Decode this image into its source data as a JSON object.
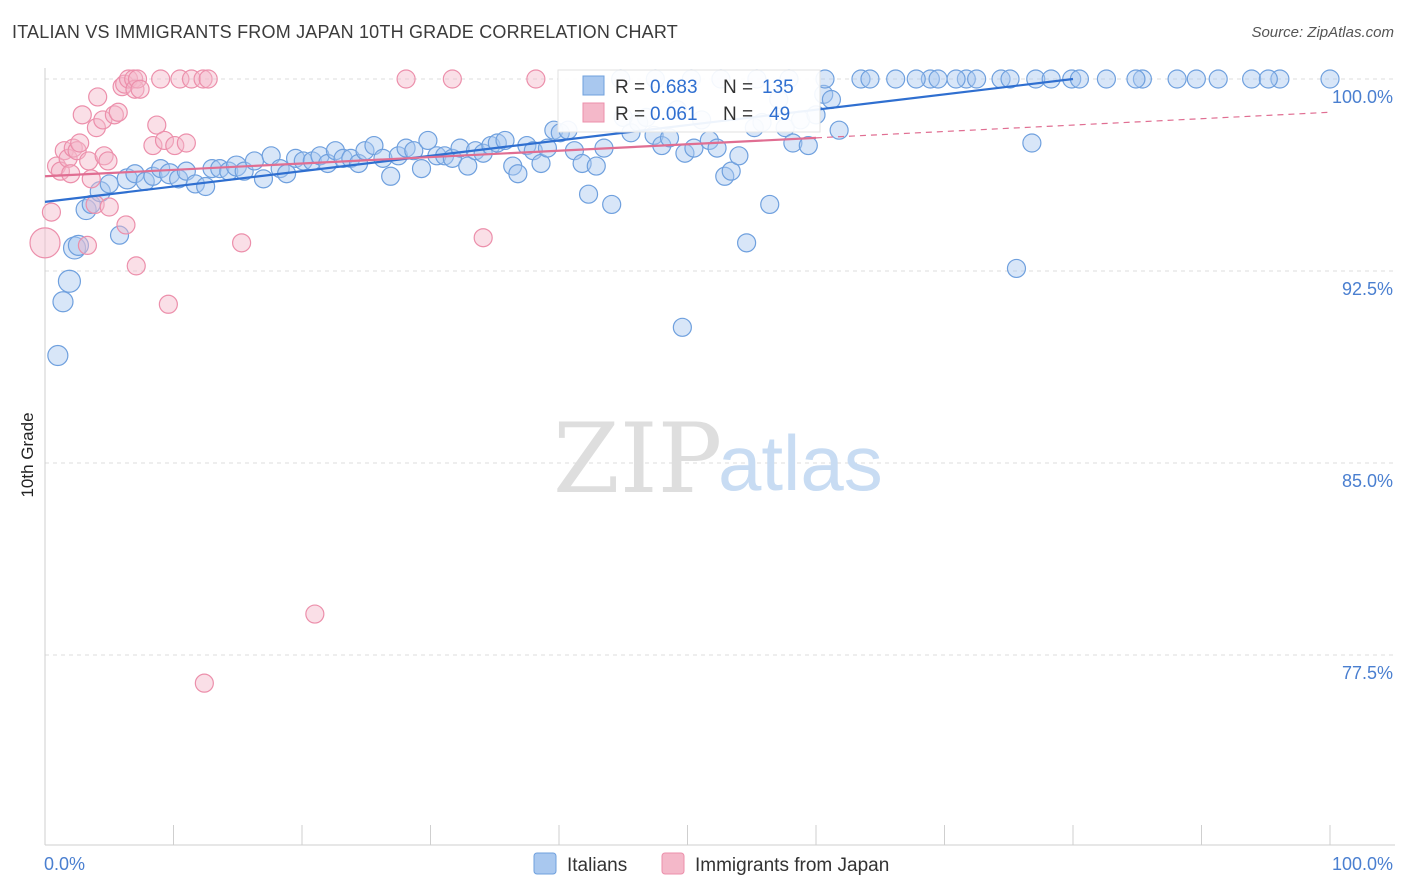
{
  "chart_data": {
    "type": "scatter",
    "title": "ITALIAN VS IMMIGRANTS FROM JAPAN 10TH GRADE CORRELATION CHART",
    "source": "Source: ZipAtlas.com",
    "ylabel": "10th Grade",
    "xlabel": "",
    "xlim": [
      0,
      100
    ],
    "ylim": [
      70.0,
      101.0
    ],
    "x_tick_labels": [
      "0.0%",
      "100.0%"
    ],
    "y_ticks": [
      100.0,
      92.5,
      85.0,
      77.5
    ],
    "y_tick_labels": [
      "100.0%",
      "92.5%",
      "85.0%",
      "77.5%"
    ],
    "watermark": {
      "zip": "ZIP",
      "atlas": "atlas"
    },
    "legend_stats": [
      {
        "r_label": "R =",
        "r_value": "0.683",
        "n_label": "N =",
        "n_value": "135"
      },
      {
        "r_label": "R =",
        "r_value": "0.061",
        "n_label": "N =",
        "n_value": "49"
      }
    ],
    "series": [
      {
        "name": "Italians",
        "color": "#6fa0de",
        "fill": "#a9c8ef",
        "line_color": "#2f6fd0",
        "trend": {
          "x0": 0,
          "y0": 95.2,
          "x1": 80,
          "y1": 100.0
        },
        "points": [
          [
            1,
            89.2,
            10
          ],
          [
            1.4,
            91.3,
            10
          ],
          [
            1.9,
            92.1,
            11
          ],
          [
            2.3,
            93.4,
            11
          ],
          [
            2.6,
            93.5,
            10
          ],
          [
            3.2,
            94.9,
            10
          ],
          [
            3.6,
            95.1,
            9
          ],
          [
            4.3,
            95.6,
            10
          ],
          [
            5,
            95.9,
            9
          ],
          [
            5.8,
            93.9,
            9
          ],
          [
            6.4,
            96.1,
            10
          ],
          [
            7,
            96.3,
            9
          ],
          [
            7.8,
            96.0,
            9
          ],
          [
            8.4,
            96.2,
            9
          ],
          [
            9,
            96.5,
            9
          ],
          [
            9.7,
            96.3,
            10
          ],
          [
            10.4,
            96.1,
            9
          ],
          [
            11,
            96.4,
            9
          ],
          [
            11.7,
            95.9,
            9
          ],
          [
            12.5,
            95.8,
            9
          ],
          [
            13,
            96.5,
            9
          ],
          [
            13.6,
            96.5,
            9
          ],
          [
            14.3,
            96.4,
            9
          ],
          [
            14.9,
            96.6,
            10
          ],
          [
            15.5,
            96.4,
            9
          ],
          [
            16.3,
            96.8,
            9
          ],
          [
            17,
            96.1,
            9
          ],
          [
            17.6,
            97.0,
            9
          ],
          [
            18.3,
            96.5,
            9
          ],
          [
            18.8,
            96.3,
            9
          ],
          [
            19.5,
            96.9,
            9
          ],
          [
            20.1,
            96.8,
            9
          ],
          [
            20.8,
            96.8,
            9
          ],
          [
            21.4,
            97.0,
            9
          ],
          [
            22,
            96.7,
            9
          ],
          [
            22.6,
            97.2,
            9
          ],
          [
            23.2,
            96.9,
            9
          ],
          [
            23.8,
            96.9,
            9
          ],
          [
            24.4,
            96.7,
            9
          ],
          [
            24.9,
            97.2,
            9
          ],
          [
            25.6,
            97.4,
            9
          ],
          [
            26.3,
            96.9,
            9
          ],
          [
            26.9,
            96.2,
            9
          ],
          [
            27.5,
            97.0,
            9
          ],
          [
            28.1,
            97.3,
            9
          ],
          [
            28.7,
            97.2,
            9
          ],
          [
            29.3,
            96.5,
            9
          ],
          [
            29.8,
            97.6,
            9
          ],
          [
            30.5,
            97.0,
            9
          ],
          [
            31.1,
            97.0,
            9
          ],
          [
            31.7,
            96.9,
            9
          ],
          [
            32.3,
            97.3,
            9
          ],
          [
            32.9,
            96.6,
            9
          ],
          [
            33.5,
            97.2,
            9
          ],
          [
            34.1,
            97.1,
            9
          ],
          [
            34.7,
            97.4,
            9
          ],
          [
            35.2,
            97.5,
            9
          ],
          [
            35.8,
            97.6,
            9
          ],
          [
            36.4,
            96.6,
            9
          ],
          [
            36.8,
            96.3,
            9
          ],
          [
            37.5,
            97.4,
            9
          ],
          [
            38,
            97.2,
            9
          ],
          [
            38.6,
            96.7,
            9
          ],
          [
            39.1,
            97.3,
            9
          ],
          [
            39.6,
            98.0,
            9
          ],
          [
            40.1,
            97.9,
            9
          ],
          [
            40.7,
            98.0,
            9
          ],
          [
            41.2,
            97.2,
            9
          ],
          [
            41.8,
            96.7,
            9
          ],
          [
            42.3,
            95.5,
            9
          ],
          [
            42.9,
            96.6,
            9
          ],
          [
            43.5,
            97.3,
            9
          ],
          [
            44.1,
            95.1,
            9
          ],
          [
            45,
            98.5,
            9
          ],
          [
            45.6,
            97.9,
            9
          ],
          [
            46.2,
            98.3,
            9
          ],
          [
            46.8,
            98.5,
            9
          ],
          [
            47.4,
            97.8,
            9
          ],
          [
            48,
            97.4,
            9
          ],
          [
            48.6,
            97.7,
            9
          ],
          [
            49.2,
            98.8,
            9
          ],
          [
            49.8,
            97.1,
            9
          ],
          [
            50.5,
            97.3,
            9
          ],
          [
            51.1,
            98.4,
            9
          ],
          [
            51.7,
            97.6,
            9
          ],
          [
            52.3,
            97.3,
            9
          ],
          [
            52.9,
            96.2,
            9
          ],
          [
            53.4,
            96.4,
            9
          ],
          [
            54,
            97.0,
            9
          ],
          [
            54.6,
            93.6,
            9
          ],
          [
            55.2,
            98.1,
            9
          ],
          [
            55.8,
            98.3,
            9
          ],
          [
            56.4,
            95.1,
            9
          ],
          [
            57.1,
            99.2,
            9
          ],
          [
            57.6,
            98.1,
            9
          ],
          [
            58.2,
            97.5,
            9
          ],
          [
            58.8,
            98.4,
            9
          ],
          [
            59.4,
            97.4,
            9
          ],
          [
            60,
            98.6,
            9
          ],
          [
            60.6,
            99.4,
            9
          ],
          [
            61.2,
            99.2,
            9
          ],
          [
            61.8,
            98.0,
            9
          ],
          [
            49.6,
            90.3,
            9
          ],
          [
            44.8,
            100,
            9
          ],
          [
            47.5,
            100,
            9
          ],
          [
            50.3,
            100,
            9
          ],
          [
            52.6,
            100,
            9
          ],
          [
            55.4,
            100,
            9
          ],
          [
            57.9,
            100,
            9
          ],
          [
            60.7,
            100,
            9
          ],
          [
            63.5,
            100,
            9
          ],
          [
            66.2,
            100,
            9
          ],
          [
            68.9,
            100,
            9
          ],
          [
            71.7,
            100,
            9
          ],
          [
            74.4,
            100,
            9
          ],
          [
            77.1,
            100,
            9
          ],
          [
            79.9,
            100,
            9
          ],
          [
            82.6,
            100,
            9
          ],
          [
            85.4,
            100,
            9
          ],
          [
            88.1,
            100,
            9
          ],
          [
            91.3,
            100,
            9
          ],
          [
            93.9,
            100,
            9
          ],
          [
            96.1,
            100,
            9
          ],
          [
            100,
            100,
            9
          ],
          [
            72.5,
            100,
            9
          ],
          [
            78.3,
            100,
            9
          ],
          [
            80.5,
            100,
            9
          ],
          [
            84.9,
            100,
            9
          ],
          [
            89.6,
            100,
            9
          ],
          [
            64.2,
            100,
            9
          ],
          [
            67.8,
            100,
            9
          ],
          [
            69.5,
            100,
            9
          ],
          [
            70.9,
            100,
            9
          ],
          [
            75.1,
            100,
            9
          ],
          [
            76.8,
            97.5,
            9
          ],
          [
            75.6,
            92.6,
            9
          ],
          [
            95.2,
            100,
            9
          ]
        ]
      },
      {
        "name": "Immigrants from Japan",
        "color": "#ec8fab",
        "fill": "#f4b8c9",
        "line_color": "#e06e92",
        "trend": {
          "x0": 0,
          "y0": 96.2,
          "x1": 60,
          "y1": 97.7
        },
        "trend_ext": {
          "x0": 60,
          "y0": 97.7,
          "x1": 100,
          "y1": 98.7
        },
        "points": [
          [
            0,
            93.6,
            15
          ],
          [
            0.5,
            94.8,
            9
          ],
          [
            0.9,
            96.6,
            9
          ],
          [
            1.2,
            96.4,
            9
          ],
          [
            1.5,
            97.2,
            9
          ],
          [
            1.8,
            96.9,
            9
          ],
          [
            2,
            96.3,
            9
          ],
          [
            2.2,
            97.3,
            9
          ],
          [
            2.5,
            97.2,
            9
          ],
          [
            2.7,
            97.5,
            9
          ],
          [
            2.9,
            98.6,
            9
          ],
          [
            3.3,
            93.5,
            9
          ],
          [
            3.4,
            96.8,
            9
          ],
          [
            3.6,
            96.1,
            9
          ],
          [
            3.9,
            95.1,
            9
          ],
          [
            4,
            98.1,
            9
          ],
          [
            4.1,
            99.3,
            9
          ],
          [
            4.5,
            98.4,
            9
          ],
          [
            4.6,
            97.0,
            9
          ],
          [
            4.9,
            96.8,
            9
          ],
          [
            5,
            95.0,
            9
          ],
          [
            5.4,
            98.6,
            9
          ],
          [
            5.7,
            98.7,
            9
          ],
          [
            6,
            99.7,
            9
          ],
          [
            6.2,
            99.8,
            9
          ],
          [
            6.3,
            94.3,
            9
          ],
          [
            6.5,
            100,
            9
          ],
          [
            6.9,
            100,
            9
          ],
          [
            7,
            99.6,
            9
          ],
          [
            7.2,
            100,
            9
          ],
          [
            7.1,
            92.7,
            9
          ],
          [
            7.4,
            99.6,
            9
          ],
          [
            8.4,
            97.4,
            9
          ],
          [
            8.7,
            98.2,
            9
          ],
          [
            9,
            100,
            9
          ],
          [
            9.3,
            97.6,
            9
          ],
          [
            9.6,
            91.2,
            9
          ],
          [
            10.1,
            97.4,
            9
          ],
          [
            10.5,
            100,
            9
          ],
          [
            11,
            97.5,
            9
          ],
          [
            11.4,
            100,
            9
          ],
          [
            12.3,
            100,
            9
          ],
          [
            12.7,
            100,
            9
          ],
          [
            12.4,
            76.4,
            9
          ],
          [
            15.3,
            93.6,
            9
          ],
          [
            21,
            79.1,
            9
          ],
          [
            28.1,
            100,
            9
          ],
          [
            31.7,
            100,
            9
          ],
          [
            34.1,
            93.8,
            9
          ],
          [
            38.2,
            100,
            9
          ]
        ]
      }
    ]
  }
}
